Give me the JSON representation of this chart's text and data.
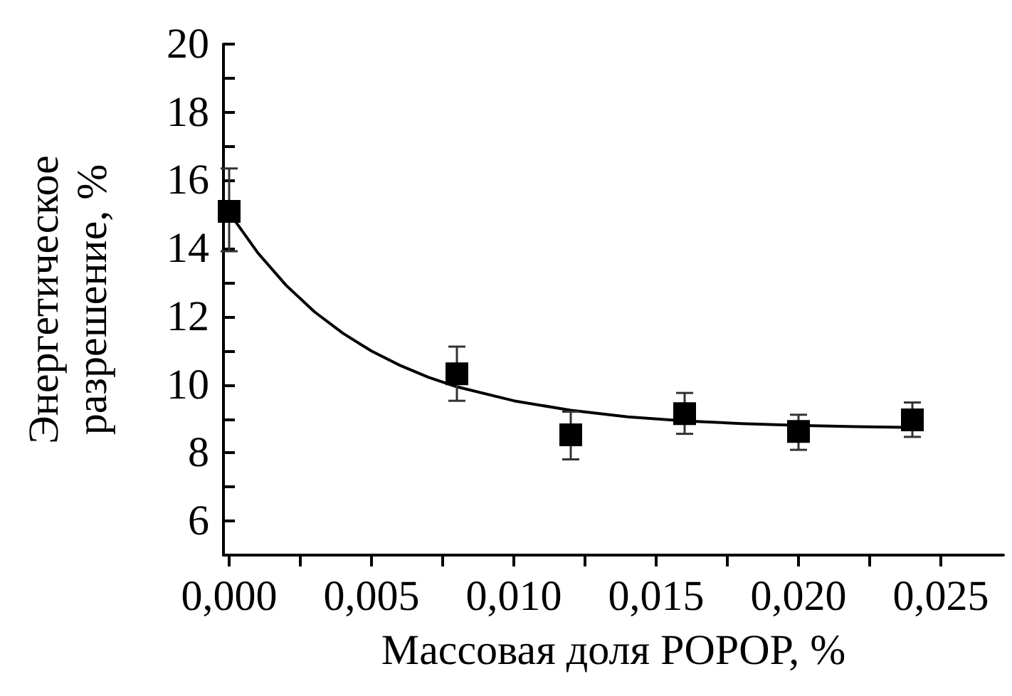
{
  "chart_data": {
    "type": "scatter",
    "xlabel": "Массовая доля POPOP, %",
    "ylabel": "Энергетическое\nразрешение, %",
    "xlim": [
      -0.0002,
      0.0272
    ],
    "ylim": [
      5,
      20
    ],
    "xticks": [
      {
        "value": 0,
        "label": "0,000"
      },
      {
        "value": 0.0025,
        "label": null
      },
      {
        "value": 0.005,
        "label": "0,005"
      },
      {
        "value": 0.0075,
        "label": null
      },
      {
        "value": 0.01,
        "label": "0,010"
      },
      {
        "value": 0.0125,
        "label": null
      },
      {
        "value": 0.015,
        "label": "0,015"
      },
      {
        "value": 0.0175,
        "label": null
      },
      {
        "value": 0.02,
        "label": "0,020"
      },
      {
        "value": 0.0225,
        "label": null
      },
      {
        "value": 0.025,
        "label": "0,025"
      }
    ],
    "yticks": [
      6,
      {
        "value": 7,
        "label": null
      },
      8,
      {
        "value": 9,
        "label": null
      },
      10,
      {
        "value": 11,
        "label": null
      },
      12,
      {
        "value": 13,
        "label": null
      },
      14,
      {
        "value": 15,
        "label": null
      },
      16,
      {
        "value": 17,
        "label": null
      },
      18,
      {
        "value": 19,
        "label": null
      },
      20
    ],
    "grid": false,
    "series": [
      {
        "color": "#000000",
        "marker": "square",
        "x": [
          0,
          0.008,
          0.012,
          0.016,
          0.02,
          0.024
        ],
        "values": [
          15.09,
          10.32,
          8.53,
          9.15,
          8.63,
          8.97
        ],
        "errors": [
          [
            13.92,
            16.35
          ],
          [
            9.53,
            11.12
          ],
          [
            7.81,
            9.21
          ],
          [
            8.56,
            9.76
          ],
          [
            8.09,
            9.12
          ],
          [
            8.47,
            9.48
          ]
        ]
      },
      {
        "type": "line",
        "color": "#000000",
        "marker": "none",
        "line_style": "solid",
        "x": [
          0,
          0.001,
          0.002,
          0.003,
          0.004,
          0.005,
          0.006,
          0.007,
          0.008,
          0.01,
          0.012,
          0.014,
          0.016,
          0.018,
          0.02,
          0.022,
          0.024
        ],
        "values": [
          15.05,
          13.88,
          12.92,
          12.14,
          11.51,
          10.99,
          10.57,
          10.22,
          9.94,
          9.53,
          9.25,
          9.06,
          8.94,
          8.86,
          8.81,
          8.77,
          8.75
        ]
      }
    ]
  }
}
